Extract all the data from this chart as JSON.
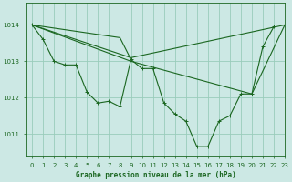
{
  "background_color": "#cce8e4",
  "grid_color": "#99ccbb",
  "line_color": "#1a6620",
  "title": "Graphe pression niveau de la mer (hPa)",
  "ylabel_ticks": [
    1011,
    1012,
    1013,
    1014
  ],
  "xlim": [
    -0.5,
    23
  ],
  "ylim": [
    1010.4,
    1014.6
  ],
  "xtick_labels": [
    "0",
    "1",
    "2",
    "3",
    "4",
    "5",
    "6",
    "7",
    "8",
    "9",
    "10",
    "11",
    "12",
    "13",
    "14",
    "15",
    "16",
    "17",
    "18",
    "19",
    "20",
    "21",
    "22",
    "23"
  ],
  "series1_x": [
    0,
    1,
    2,
    3,
    4,
    5,
    6,
    7,
    8,
    9,
    10,
    11,
    12,
    13,
    14,
    15,
    16,
    17,
    18,
    19,
    20,
    21,
    22
  ],
  "series1_y": [
    1014.0,
    1013.6,
    1013.0,
    1012.9,
    1012.9,
    1012.15,
    1011.85,
    1011.9,
    1011.75,
    1013.05,
    1012.8,
    1012.8,
    1011.85,
    1011.55,
    1011.35,
    1010.65,
    1010.65,
    1011.35,
    1011.5,
    1012.1,
    1012.1,
    1013.4,
    1013.95
  ],
  "series2_x": [
    0,
    9,
    23
  ],
  "series2_y": [
    1014.0,
    1013.1,
    1014.0
  ],
  "series3_x": [
    0,
    9,
    20,
    23
  ],
  "series3_y": [
    1014.0,
    1013.0,
    1012.1,
    1014.0
  ],
  "series4_x": [
    0,
    8,
    9
  ],
  "series4_y": [
    1014.0,
    1013.65,
    1013.05
  ]
}
